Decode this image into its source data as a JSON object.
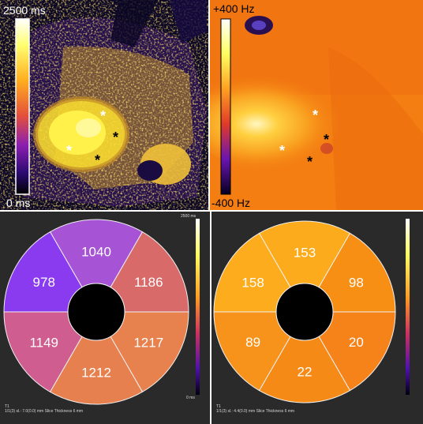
{
  "t1_map": {
    "colorbar_max": "2500 ms",
    "colorbar_min": "0 ms"
  },
  "b0_map": {
    "colorbar_max": "+400 Hz",
    "colorbar_min": "-400 Hz"
  },
  "t1_bullseye": {
    "colorbar_max": "2500 ms",
    "colorbar_min": "0 ms",
    "segments": [
      {
        "label": "1040",
        "color": "#a653d6"
      },
      {
        "label": "1186",
        "color": "#d86a6a"
      },
      {
        "label": "1217",
        "color": "#e7814e"
      },
      {
        "label": "1212",
        "color": "#e6804f"
      },
      {
        "label": "1149",
        "color": "#d05d8f"
      },
      {
        "label": "978",
        "color": "#8a3bf0"
      }
    ],
    "footer_line1": "T1",
    "footer_line2": "1/1(3) sl.: 7.0(0.0) mm Slice Thickness 6 mm"
  },
  "b0_bullseye": {
    "segments": [
      {
        "label": "153",
        "color": "#fbab1c"
      },
      {
        "label": "98",
        "color": "#f88f15"
      },
      {
        "label": "20",
        "color": "#f6821a"
      },
      {
        "label": "22",
        "color": "#f58a17"
      },
      {
        "label": "89",
        "color": "#f7921a"
      },
      {
        "label": "158",
        "color": "#fcac1d"
      }
    ],
    "footer_line1": "T1",
    "footer_line2": "1/1(3) sl.: 4.4(0.0) mm Slice Thickness 6 mm"
  }
}
